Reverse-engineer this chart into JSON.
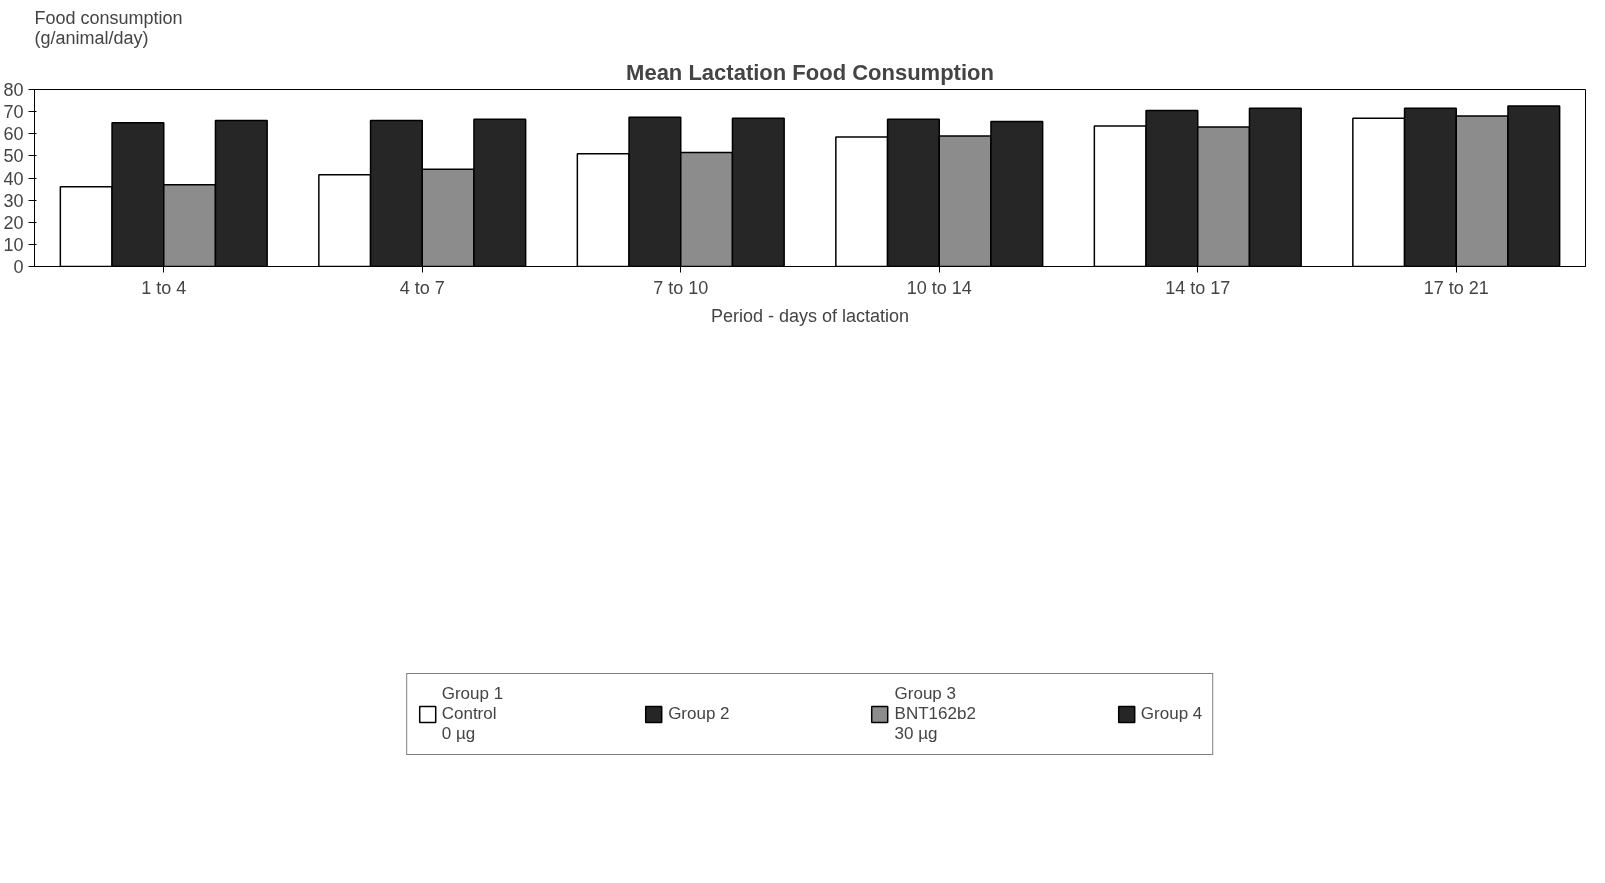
{
  "chart_data": {
    "type": "bar",
    "title": "Mean Lactation Food Consumption",
    "ylabel": "Food consumption\n(g/animal/day)",
    "xlabel": "Period - days of lactation",
    "categories": [
      "1 to 4",
      "4 to 7",
      "7 to 10",
      "10 to 14",
      "14 to 17",
      "17 to 21"
    ],
    "series": [
      {
        "name": "Group 1\nControl\n0 µg",
        "color": "#ffffff",
        "values": [
          36,
          41.5,
          51,
          58.5,
          63.5,
          67
        ]
      },
      {
        "name": "Group 2",
        "color": "#262626",
        "values": [
          65,
          66,
          67.5,
          66.5,
          70.5,
          71.5
        ]
      },
      {
        "name": "Group 3\nBNT162b2\n30 µg",
        "color": "#8c8c8c",
        "values": [
          37,
          44,
          51.5,
          59,
          63,
          68
        ]
      },
      {
        "name": "Group 4",
        "color": "#262626",
        "values": [
          66,
          66.5,
          67,
          65.5,
          71.5,
          72.5
        ]
      }
    ],
    "ylim": [
      0,
      80
    ],
    "yticks": [
      0,
      10,
      20,
      30,
      40,
      50,
      60,
      70,
      80
    ],
    "grid": false,
    "legend": "bottom"
  }
}
